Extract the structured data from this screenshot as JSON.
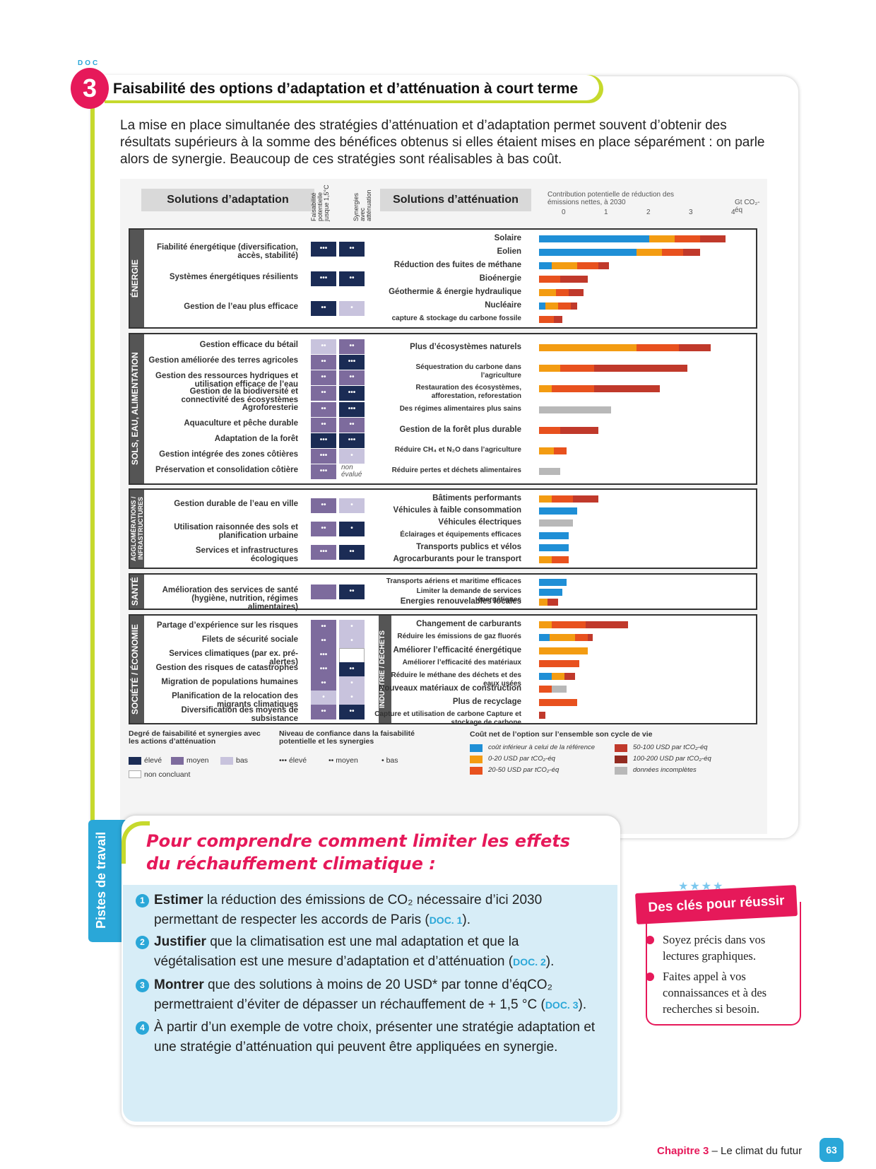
{
  "doc": {
    "label": "DOC",
    "number": "3",
    "title": "Faisabilité des options d’adaptation et d’atténuation à court terme"
  },
  "intro": "La mise en place simultanée des stratégies d’atténuation et d’adaptation permet souvent d’obtenir des résultats supérieurs à la somme des bénéfices obtenus si elles étaient mises en place séparément : on parle alors de synergie. Beaucoup de ces stratégies sont réalisables à bas coût.",
  "headers": {
    "adaptation": "Solutions d’adaptation",
    "col1": "Faisabilité potentielle jusque 1,5°C",
    "col2": "Synergies avec atténuation",
    "attenuation": "Solutions d’atténuation",
    "contrib": "Contribution potentielle de réduction des émissions nettes, à 2030",
    "unit": "Gt CO₂-éq",
    "ticks": [
      "0",
      "1",
      "2",
      "3",
      "4"
    ],
    "non_evalue": "non évalué"
  },
  "sections": [
    {
      "name": "ÉNERGIE",
      "adapt": [
        {
          "label": "Fiabilité énergétique (diversification, accès, stabilité)",
          "f": "h",
          "fd": "•••",
          "s": "h",
          "sd": "••"
        },
        {
          "label": "Systèmes énergétiques résilients",
          "f": "h",
          "fd": "•••",
          "s": "h",
          "sd": "••"
        },
        {
          "label": "Gestion de l’eau plus efficace",
          "f": "h",
          "fd": "••",
          "s": "b",
          "sd": "•"
        }
      ],
      "mit": [
        {
          "label": "Solaire",
          "v": [
            [
              2.6,
              "#1f8fd6"
            ],
            [
              0.6,
              "#f39c12"
            ],
            [
              0.6,
              "#e8511e"
            ],
            [
              0.6,
              "#c0392b"
            ]
          ]
        },
        {
          "label": "Eolien",
          "v": [
            [
              2.3,
              "#1f8fd6"
            ],
            [
              0.6,
              "#f39c12"
            ],
            [
              0.5,
              "#e8511e"
            ],
            [
              0.4,
              "#c0392b"
            ]
          ]
        },
        {
          "label": "Réduction des fuites de méthane",
          "v": [
            [
              0.3,
              "#1f8fd6"
            ],
            [
              0.6,
              "#f39c12"
            ],
            [
              0.5,
              "#e8511e"
            ],
            [
              0.25,
              "#c0392b"
            ]
          ]
        },
        {
          "label": "Bioénergie",
          "v": [
            [
              0.5,
              "#e8511e"
            ],
            [
              0.65,
              "#c0392b"
            ]
          ]
        },
        {
          "label": "Géothermie & énergie hydraulique",
          "v": [
            [
              0.4,
              "#f39c12"
            ],
            [
              0.3,
              "#e8511e"
            ],
            [
              0.35,
              "#c0392b"
            ]
          ]
        },
        {
          "label": "Nucléaire",
          "v": [
            [
              0.15,
              "#1f8fd6"
            ],
            [
              0.3,
              "#f39c12"
            ],
            [
              0.3,
              "#e8511e"
            ],
            [
              0.15,
              "#c0392b"
            ]
          ]
        },
        {
          "label": "capture & stockage du carbone fossile",
          "v": [
            [
              0.35,
              "#e8511e"
            ],
            [
              0.2,
              "#c0392b"
            ]
          ]
        }
      ]
    },
    {
      "name": "SOLS, EAU, ALIMENTATION",
      "adapt": [
        {
          "label": "Gestion efficace du bétail",
          "f": "b",
          "fd": "••",
          "s": "m",
          "sd": "••"
        },
        {
          "label": "Gestion améliorée des terres agricoles",
          "f": "m",
          "fd": "••",
          "s": "h",
          "sd": "•••"
        },
        {
          "label": "Gestion des ressources hydriques et utilisation efficace de l’eau",
          "f": "m",
          "fd": "••",
          "s": "m",
          "sd": "••"
        },
        {
          "label": "Gestion de la biodiversité et connectivité des écosystèmes",
          "f": "m",
          "fd": "••",
          "s": "h",
          "sd": "•••"
        },
        {
          "label": "Agroforesterie",
          "f": "m",
          "fd": "••",
          "s": "h",
          "sd": "•••"
        },
        {
          "label": "Aquaculture et pêche durable",
          "f": "m",
          "fd": "••",
          "s": "m",
          "sd": "••"
        },
        {
          "label": "Adaptation de la forêt",
          "f": "h",
          "fd": "•••",
          "s": "h",
          "sd": "•••"
        },
        {
          "label": "Gestion intégrée des zones côtières",
          "f": "m",
          "fd": "•••",
          "s": "b",
          "sd": "•"
        },
        {
          "label": "Préservation et consolidation côtière",
          "f": "m",
          "fd": "•••",
          "s": "none",
          "sd": ""
        }
      ],
      "mit": [
        {
          "label": "Plus d’écosystèmes naturels",
          "v": [
            [
              2.3,
              "#f39c12"
            ],
            [
              1.0,
              "#e8511e"
            ],
            [
              0.75,
              "#c0392b"
            ]
          ]
        },
        {
          "label": "Séquestration du carbone dans l’agriculture",
          "v": [
            [
              0.5,
              "#f39c12"
            ],
            [
              0.8,
              "#e8511e"
            ],
            [
              2.2,
              "#c0392b"
            ]
          ]
        },
        {
          "label": "Restauration des écosystèmes, afforestation, reforestation",
          "v": [
            [
              0.3,
              "#f39c12"
            ],
            [
              1.0,
              "#e8511e"
            ],
            [
              1.55,
              "#c0392b"
            ]
          ]
        },
        {
          "label": "Des régimes alimentaires plus sains",
          "v": [
            [
              1.7,
              "#b8b8b8"
            ]
          ]
        },
        {
          "label": "Gestion de la forêt plus durable",
          "v": [
            [
              0.5,
              "#e8511e"
            ],
            [
              0.9,
              "#c0392b"
            ]
          ]
        },
        {
          "label": "Réduire CH₄ et N₂O dans l’agriculture",
          "v": [
            [
              0.35,
              "#f39c12"
            ],
            [
              0.3,
              "#e8511e"
            ]
          ]
        },
        {
          "label": "Réduire pertes et déchets alimentaires",
          "v": [
            [
              0.5,
              "#b8b8b8"
            ]
          ]
        }
      ]
    },
    {
      "name": "AGGLOMÉRATIONS / INFRASTRUCTURES",
      "adapt": [
        {
          "label": "Gestion durable de l’eau en ville",
          "f": "m",
          "fd": "••",
          "s": "b",
          "sd": "•"
        },
        {
          "label": "Utilisation raisonnée des sols et planification urbaine",
          "f": "m",
          "fd": "••",
          "s": "h",
          "sd": "•"
        },
        {
          "label": "Services et infrastructures écologiques",
          "f": "m",
          "fd": "•••",
          "s": "h",
          "sd": "••"
        }
      ],
      "mit": [
        {
          "label": "Bâtiments performants",
          "v": [
            [
              0.3,
              "#f39c12"
            ],
            [
              0.5,
              "#e8511e"
            ],
            [
              0.6,
              "#c0392b"
            ]
          ]
        },
        {
          "label": "Véhicules à faible consommation",
          "v": [
            [
              0.9,
              "#1f8fd6"
            ]
          ]
        },
        {
          "label": "Véhicules électriques",
          "v": [
            [
              0.8,
              "#b8b8b8"
            ]
          ]
        },
        {
          "label": "Éclairages et équipements efficaces",
          "v": [
            [
              0.7,
              "#1f8fd6"
            ]
          ]
        },
        {
          "label": "Transports publics et vélos",
          "v": [
            [
              0.7,
              "#1f8fd6"
            ]
          ]
        },
        {
          "label": "Agrocarburants pour le transport",
          "v": [
            [
              0.3,
              "#f39c12"
            ],
            [
              0.4,
              "#e8511e"
            ]
          ]
        }
      ]
    },
    {
      "name": "SANTÉ",
      "adapt": [
        {
          "label": "Amélioration des services de santé (hygiène, nutrition, régimes alimentaires)",
          "f": "m",
          "fd": "",
          "s": "h",
          "sd": "••"
        }
      ],
      "mit": [
        {
          "label": "Transports aériens et maritime efficaces",
          "v": [
            [
              0.65,
              "#1f8fd6"
            ]
          ]
        },
        {
          "label": "Limiter la demande de services énergétiques",
          "v": [
            [
              0.55,
              "#1f8fd6"
            ]
          ]
        },
        {
          "label": "Energies renouvelables locales",
          "v": [
            [
              0.2,
              "#f39c12"
            ],
            [
              0.25,
              "#c0392b"
            ]
          ]
        }
      ]
    },
    {
      "name": "SOCIÉTÉ / ÉCONOMIE",
      "name2": "INDUSTRIE / DÉCHETS",
      "adapt": [
        {
          "label": "Partage d’expérience sur les risques",
          "f": "m",
          "fd": "••",
          "s": "b",
          "sd": "•"
        },
        {
          "label": "Filets de sécurité sociale",
          "f": "m",
          "fd": "••",
          "s": "b",
          "sd": "•"
        },
        {
          "label": "Services climatiques (par ex. pré-alertes)",
          "f": "m",
          "fd": "•••",
          "s": "n",
          "sd": ""
        },
        {
          "label": "Gestion des risques de catastrophes",
          "f": "m",
          "fd": "•••",
          "s": "h",
          "sd": "••"
        },
        {
          "label": "Migration de populations humaines",
          "f": "m",
          "fd": "••",
          "s": "b",
          "sd": "•"
        },
        {
          "label": "Planification de la relocation des migrants climatiques",
          "f": "b",
          "fd": "•",
          "s": "b",
          "sd": "•"
        },
        {
          "label": "Diversification des moyens de subsistance",
          "f": "m",
          "fd": "••",
          "s": "h",
          "sd": "••"
        }
      ],
      "mit": [
        {
          "label": "Changement de carburants",
          "v": [
            [
              0.3,
              "#f39c12"
            ],
            [
              0.8,
              "#e8511e"
            ],
            [
              1.0,
              "#c0392b"
            ]
          ]
        },
        {
          "label": "Réduire les émissions de gaz fluorés",
          "v": [
            [
              0.25,
              "#1f8fd6"
            ],
            [
              0.6,
              "#f39c12"
            ],
            [
              0.3,
              "#e8511e"
            ],
            [
              0.12,
              "#c0392b"
            ]
          ]
        },
        {
          "label": "Améliorer l’efficacité énergétique",
          "v": [
            [
              1.15,
              "#f39c12"
            ]
          ]
        },
        {
          "label": "Améliorer l’efficacité des matériaux",
          "v": [
            [
              0.95,
              "#e8511e"
            ]
          ]
        },
        {
          "label": "Réduire le méthane des déchets et des eaux usées",
          "v": [
            [
              0.3,
              "#1f8fd6"
            ],
            [
              0.3,
              "#f39c12"
            ],
            [
              0.25,
              "#c0392b"
            ]
          ]
        },
        {
          "label": "Nouveaux matériaux de construction",
          "v": [
            [
              0.3,
              "#e8511e"
            ],
            [
              0.35,
              "#b8b8b8"
            ]
          ]
        },
        {
          "label": "Plus de recyclage",
          "v": [
            [
              0.9,
              "#e8511e"
            ]
          ]
        },
        {
          "label": "Capture et utilisation de carbone Capture et stockage de carbone",
          "v": [
            [
              0.15,
              "#c0392b"
            ]
          ]
        }
      ]
    }
  ],
  "legend": {
    "deg_title": "Degré de faisabilité et synergies avec les actions d’atténuation",
    "eleve": "élevé",
    "moyen": "moyen",
    "bas": "bas",
    "nc": "non concluant",
    "conf_title": "Niveau de confiance dans la faisabilité potentielle et les synergies",
    "c1": "••• élevé",
    "c2": "•• moyen",
    "c3": "• bas",
    "cost_title": "Coût net de l’option sur l’ensemble son cycle de vie",
    "costs": [
      "coût inférieur à celui de la référence",
      "0-20 USD par tCO₂-éq",
      "20-50 USD par tCO₂-éq",
      "50-100 USD par tCO₂-éq",
      "100-200 USD par tCO₂-éq",
      "données incomplètes"
    ],
    "cost_colors": [
      "#1f8fd6",
      "#f39c12",
      "#e8511e",
      "#c0392b",
      "#922b21",
      "#b8b8b8"
    ]
  },
  "pistes": {
    "tab": "Pistes de travail",
    "title1": "Pour comprendre comment limiter les effets",
    "title2": "du réchauffement climatique :",
    "tasks": [
      {
        "n": "1",
        "verb": "Estimer",
        "text": " la réduction des émissions de CO₂ nécessaire d’ici 2030 permettant de respecter les accords de Paris (",
        "ref": "DOC. 1",
        "end": ")."
      },
      {
        "n": "2",
        "verb": "Justifier",
        "text": " que la climatisation est une mal adaptation et que la végétalisation est une mesure d’adaptation et d’atténuation (",
        "ref": "DOC. 2",
        "end": ")."
      },
      {
        "n": "3",
        "verb": "Montrer",
        "text": " que des solutions à moins de 20 USD* par tonne d’éqCO₂ permettraient d’éviter de dépasser un réchauffement de + 1,5 °C (",
        "ref": "DOC. 3",
        "end": ")."
      },
      {
        "n": "4",
        "verb": "",
        "text": "À partir d’un exemple de votre choix, présenter une stratégie adaptation et une stratégie d’atténuation qui peuvent être appliquées en synergie.",
        "ref": "",
        "end": ""
      }
    ]
  },
  "cles": {
    "title": "Des clés pour réussir",
    "items": [
      "Soyez précis dans vos lectures graphiques.",
      "Faites appel à vos connaissances et à des recherches si besoin."
    ]
  },
  "footer": {
    "chapter": "Chapitre 3",
    "rest": " – Le climat du futur",
    "page": "63"
  }
}
